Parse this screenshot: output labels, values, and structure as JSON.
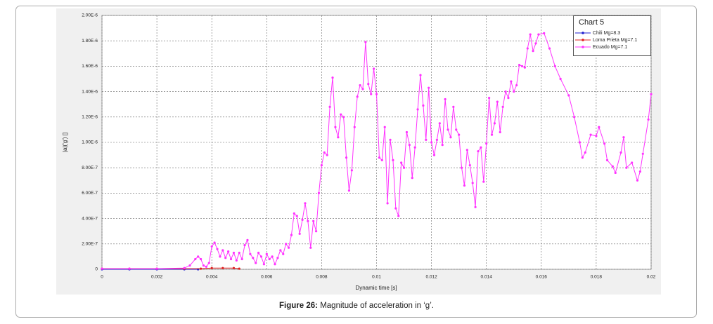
{
  "chart_data": {
    "type": "line",
    "legend_title": "Chart 5",
    "x_label": "Dynamic time [s]",
    "y_label": "|a|('g') []",
    "caption_label": "Figure 26:",
    "caption": "Magnitude of acceleration in ‘g’.",
    "xlim": [
      0,
      0.02
    ],
    "xticks": [
      0,
      0.002,
      0.004,
      0.006,
      0.008,
      0.01,
      0.012,
      0.014,
      0.016,
      0.018,
      0.02
    ],
    "ylim": [
      0,
      2e-06
    ],
    "yticks": [
      0,
      {
        "value": 2e-07,
        "label": "2.00E-7"
      },
      {
        "value": 4e-07,
        "label": "4.00E-7"
      },
      {
        "value": 6e-07,
        "label": "6.00E-7"
      },
      {
        "value": 8e-07,
        "label": "8.00E-7"
      },
      {
        "value": 1e-06,
        "label": "1.00E-6"
      },
      {
        "value": 1.2e-06,
        "label": "1.20E-6"
      },
      {
        "value": 1.4e-06,
        "label": "1.40E-6"
      },
      {
        "value": 1.6e-06,
        "label": "1.60E-6"
      },
      {
        "value": 1.8e-06,
        "label": "1.80E-6"
      },
      {
        "value": 2e-06,
        "label": "2.00E-6"
      }
    ],
    "grid": true,
    "legend": "upper right",
    "series": [
      {
        "name": "Chili Mg=8.3",
        "color": "#2020d0",
        "x": [
          0,
          0.001,
          0.002,
          0.003,
          0.0035
        ],
        "values": [
          0,
          0,
          0,
          0,
          0
        ]
      },
      {
        "name": "Loma Prieta Mg=7.1",
        "color": "#e02020",
        "x": [
          0,
          0.001,
          0.002,
          0.003,
          0.0036,
          0.004,
          0.0044,
          0.0048,
          0.005
        ],
        "values": [
          5e-09,
          5e-09,
          5e-09,
          5e-09,
          5e-09,
          1e-08,
          1e-08,
          1e-08,
          5e-09
        ]
      },
      {
        "name": "Ecuado Mg=7.1",
        "color": "#ff33ff",
        "x": [
          0,
          0.001,
          0.002,
          0.003,
          0.0032,
          0.0034,
          0.0035,
          0.0036,
          0.0037,
          0.0038,
          0.0039,
          0.004,
          0.0041,
          0.0042,
          0.0043,
          0.0044,
          0.0045,
          0.0046,
          0.0047,
          0.0048,
          0.0049,
          0.005,
          0.0051,
          0.0052,
          0.0053,
          0.0054,
          0.0055,
          0.0056,
          0.0057,
          0.0058,
          0.0059,
          0.006,
          0.0061,
          0.0062,
          0.0063,
          0.0064,
          0.0065,
          0.0066,
          0.0067,
          0.0068,
          0.0069,
          0.007,
          0.0071,
          0.0072,
          0.0073,
          0.0074,
          0.0075,
          0.0076,
          0.0077,
          0.0078,
          0.0079,
          0.008,
          0.0081,
          0.0082,
          0.0083,
          0.0084,
          0.0085,
          0.0086,
          0.0087,
          0.0088,
          0.0089,
          0.009,
          0.0091,
          0.0092,
          0.0093,
          0.0094,
          0.0095,
          0.0096,
          0.0097,
          0.0098,
          0.0099,
          0.01,
          0.0101,
          0.0102,
          0.0103,
          0.0104,
          0.0105,
          0.0106,
          0.0107,
          0.0108,
          0.0109,
          0.011,
          0.0111,
          0.0112,
          0.0113,
          0.0114,
          0.0115,
          0.0116,
          0.0117,
          0.0118,
          0.0119,
          0.012,
          0.0121,
          0.0122,
          0.0123,
          0.0124,
          0.0125,
          0.0126,
          0.0127,
          0.0128,
          0.0129,
          0.013,
          0.0131,
          0.0132,
          0.0133,
          0.0134,
          0.0135,
          0.0136,
          0.0137,
          0.0138,
          0.0139,
          0.014,
          0.0141,
          0.0142,
          0.0143,
          0.0144,
          0.0145,
          0.0146,
          0.0147,
          0.0148,
          0.0149,
          0.015,
          0.0151,
          0.0152,
          0.0153,
          0.0154,
          0.0155,
          0.0156,
          0.0157,
          0.0158,
          0.0159,
          0.0161,
          0.0163,
          0.0165,
          0.0167,
          0.017,
          0.0172,
          0.0174,
          0.0175,
          0.0176,
          0.0178,
          0.018,
          0.0181,
          0.0183,
          0.0184,
          0.0186,
          0.0187,
          0.0189,
          0.019,
          0.0191,
          0.0193,
          0.0195,
          0.0196,
          0.0197,
          0.0199,
          0.02
        ],
        "values": [
          5e-09,
          5e-09,
          5e-09,
          1e-08,
          3e-08,
          8e-08,
          1e-07,
          8e-08,
          3e-08,
          2e-08,
          5e-08,
          1.8e-07,
          2.1e-07,
          1.6e-07,
          1e-07,
          1.5e-07,
          9e-08,
          1.4e-07,
          8e-08,
          1.3e-07,
          7e-08,
          1.3e-07,
          8e-08,
          1.9e-07,
          2.3e-07,
          1.2e-07,
          9e-08,
          5e-08,
          1.3e-07,
          1e-07,
          4e-08,
          1.2e-07,
          8e-08,
          1e-07,
          4e-08,
          9e-08,
          1.5e-07,
          1.2e-07,
          2e-07,
          1.7e-07,
          2.7e-07,
          4.4e-07,
          4.2e-07,
          2.8e-07,
          3.9e-07,
          5.2e-07,
          3.8e-07,
          1.7e-07,
          3.8e-07,
          3e-07,
          6e-07,
          8.2e-07,
          9.2e-07,
          9e-07,
          1.28e-06,
          1.51e-06,
          1.12e-06,
          1.04e-06,
          1.22e-06,
          1.2e-06,
          8.8e-07,
          6.2e-07,
          7.8e-07,
          1.12e-06,
          1.36e-06,
          1.45e-06,
          1.42e-06,
          1.79e-06,
          1.46e-06,
          1.38e-06,
          1.58e-06,
          1.38e-06,
          8.8e-07,
          8.6e-07,
          1.12e-06,
          5.2e-07,
          1.02e-06,
          8.6e-07,
          4.8e-07,
          4.2e-07,
          8.4e-07,
          8e-07,
          1.08e-06,
          9.8e-07,
          7.2e-07,
          9.6e-07,
          1.26e-06,
          1.53e-06,
          1.29e-06,
          1.02e-06,
          1.43e-06,
          1e-06,
          9e-07,
          1.02e-06,
          1.15e-06,
          9.8e-07,
          1.34e-06,
          1.1e-06,
          1.04e-06,
          1.28e-06,
          1.1e-06,
          1.06e-06,
          8e-07,
          6.6e-07,
          9.4e-07,
          8.2e-07,
          6.8e-07,
          4.9e-07,
          9.3e-07,
          9.6e-07,
          6.9e-07,
          9.9e-07,
          1.35e-06,
          1.06e-06,
          1.15e-06,
          1.32e-06,
          1.08e-06,
          1.28e-06,
          1.4e-06,
          1.35e-06,
          1.48e-06,
          1.4e-06,
          1.45e-06,
          1.61e-06,
          1.6e-06,
          1.59e-06,
          1.74e-06,
          1.85e-06,
          1.72e-06,
          1.78e-06,
          1.85e-06,
          1.86e-06,
          1.74e-06,
          1.6e-06,
          1.5e-06,
          1.37e-06,
          1.2e-06,
          1e-06,
          8.8e-07,
          9.2e-07,
          1.06e-06,
          1.05e-06,
          1.12e-06,
          9.9e-07,
          8.6e-07,
          8.1e-07,
          7.6e-07,
          9.2e-07,
          1.04e-06,
          8e-07,
          8.4e-07,
          7e-07,
          7.7e-07,
          9.1e-07,
          1.18e-06,
          1.38e-06
        ]
      }
    ]
  }
}
